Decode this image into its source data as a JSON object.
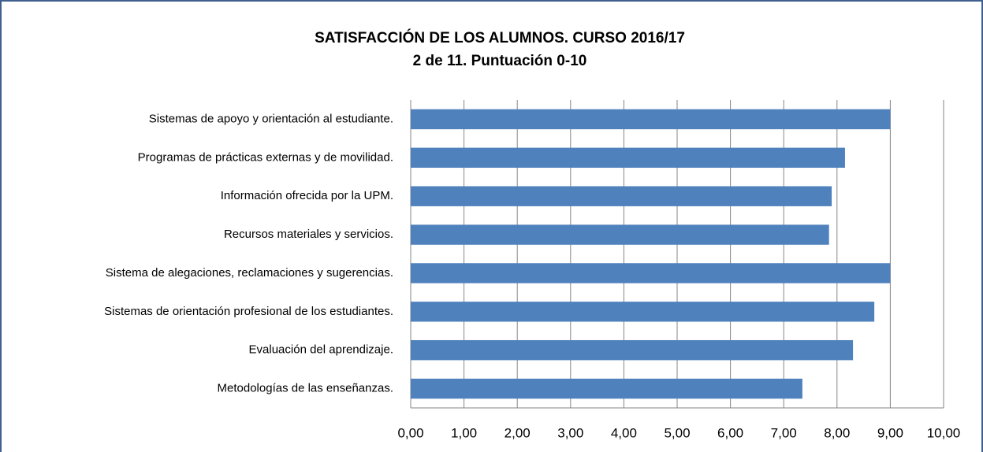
{
  "chart_data": {
    "type": "bar",
    "orientation": "horizontal",
    "title": "SATISFACCIÓN DE LOS ALUMNOS. CURSO 2016/17",
    "subtitle": "2 de 11. Puntuación 0-10",
    "categories": [
      "Sistemas de apoyo y orientación al estudiante.",
      "Programas de prácticas externas y de movilidad.",
      "Información ofrecida por la UPM.",
      "Recursos materiales y servicios.",
      "Sistema de alegaciones, reclamaciones y sugerencias.",
      "Sistemas de orientación profesional de los estudiantes.",
      "Evaluación del aprendizaje.",
      "Metodologías de las enseñanzas."
    ],
    "values": [
      9.0,
      8.15,
      7.9,
      7.85,
      9.0,
      8.7,
      8.3,
      7.35
    ],
    "color": "#4f81bd",
    "xlim": [
      0,
      10
    ],
    "xticks": [
      {
        "value": 0,
        "label": "0,00"
      },
      {
        "value": 1,
        "label": "1,00"
      },
      {
        "value": 2,
        "label": "2,00"
      },
      {
        "value": 3,
        "label": "3,00"
      },
      {
        "value": 4,
        "label": "4,00"
      },
      {
        "value": 5,
        "label": "5,00"
      },
      {
        "value": 6,
        "label": "6,00"
      },
      {
        "value": 7,
        "label": "7,00"
      },
      {
        "value": 8,
        "label": "8,00"
      },
      {
        "value": 9,
        "label": "9,00"
      },
      {
        "value": 10,
        "label": "10,00"
      }
    ],
    "grid": true
  }
}
